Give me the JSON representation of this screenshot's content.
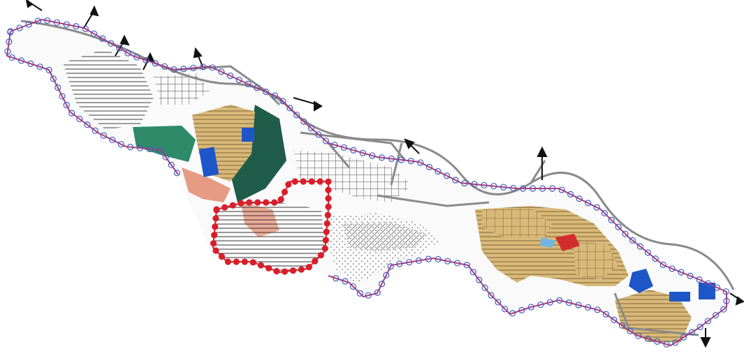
{
  "map": {
    "colors": {
      "background": "#ffffff",
      "boundary_purple": "#b03a7a",
      "boundary_circles_blue": "#3d5fc4",
      "boundary_circles_red": "#d81e2a",
      "road": "#8a8a8a",
      "hatch_black": "#222222",
      "tan_zone": "#d9b97a",
      "green_zone": "#2e8b6a",
      "dark_green_zone": "#1f5c4a",
      "blue_zone": "#1e56c8",
      "salmon_zone": "#e59b84",
      "red_zone": "#d22d2d",
      "light_blue_zone": "#6fb6e8"
    },
    "legend_visible": false,
    "arrows": [
      "north-west",
      "north-east",
      "north",
      "south",
      "east"
    ]
  }
}
